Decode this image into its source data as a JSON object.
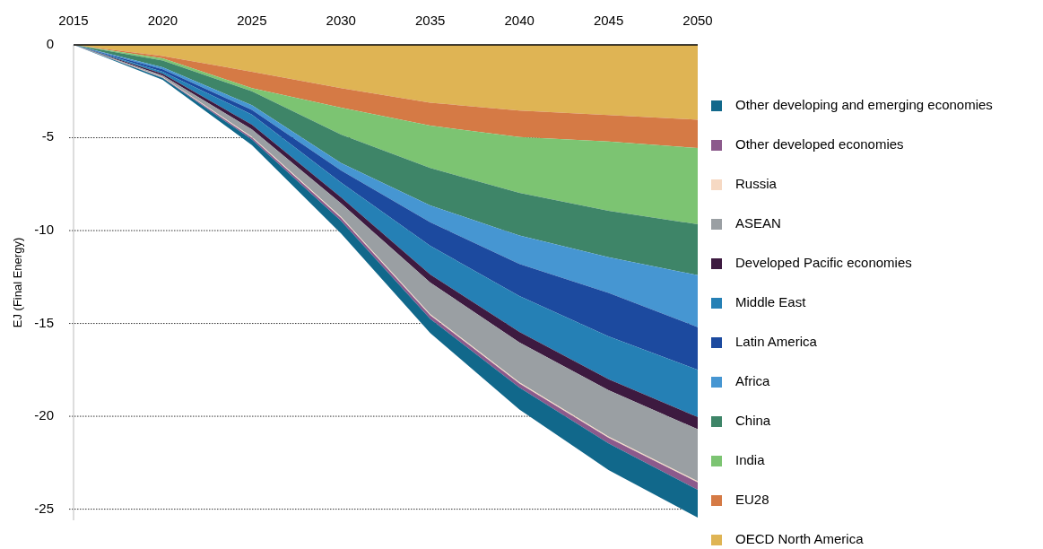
{
  "chart_data": {
    "type": "area",
    "stacked": true,
    "ylabel": "EJ (Final Energy)",
    "categories": [
      "2015",
      "2020",
      "2025",
      "2030",
      "2035",
      "2040",
      "2045",
      "2050"
    ],
    "ylim": [
      -25.6,
      0
    ],
    "yticks": [
      0,
      -5,
      -10,
      -15,
      -20,
      -25
    ],
    "grid": "y",
    "legend": "right",
    "series": [
      {
        "name": "OECD North America",
        "color": "#dfb454",
        "values": [
          0,
          -0.6,
          -1.45,
          -2.33,
          -3.11,
          -3.54,
          -3.78,
          -4.03
        ]
      },
      {
        "name": "EU28",
        "color": "#d57a45",
        "values": [
          0,
          -0.12,
          -0.88,
          -1.05,
          -1.24,
          -1.42,
          -1.42,
          -1.53
        ]
      },
      {
        "name": "India",
        "color": "#7cc472",
        "values": [
          0,
          -0.12,
          -0.17,
          -1.45,
          -2.28,
          -3.01,
          -3.74,
          -4.1
        ]
      },
      {
        "name": "China",
        "color": "#3e8568",
        "values": [
          0,
          -0.37,
          -0.75,
          -1.53,
          -2.02,
          -2.3,
          -2.49,
          -2.74
        ]
      },
      {
        "name": "Africa",
        "color": "#4696d2",
        "values": [
          0,
          -0.11,
          -0.25,
          -0.4,
          -0.9,
          -1.53,
          -1.93,
          -2.8
        ]
      },
      {
        "name": "Latin America",
        "color": "#1c4a9f",
        "values": [
          0,
          -0.13,
          -0.25,
          -0.65,
          -1.27,
          -1.73,
          -2.34,
          -2.3
        ]
      },
      {
        "name": "Middle East",
        "color": "#2580b5",
        "values": [
          0,
          -0.11,
          -0.55,
          -0.8,
          -1.55,
          -1.93,
          -2.3,
          -2.55
        ]
      },
      {
        "name": "Developed Pacific economies",
        "color": "#3d1a40",
        "values": [
          0,
          -0.1,
          -0.25,
          -0.33,
          -0.43,
          -0.56,
          -0.6,
          -0.65
        ]
      },
      {
        "name": "ASEAN",
        "color": "#9a9fa3",
        "values": [
          0,
          -0.08,
          -0.4,
          -0.72,
          -1.7,
          -2.15,
          -2.5,
          -2.8
        ]
      },
      {
        "name": "Russia",
        "color": "#f6d9c3",
        "values": [
          0,
          -0.02,
          -0.05,
          -0.06,
          -0.06,
          -0.06,
          -0.06,
          -0.06
        ]
      },
      {
        "name": "Other developed economies",
        "color": "#8c5a8c",
        "values": [
          0,
          -0.03,
          -0.1,
          -0.16,
          -0.2,
          -0.22,
          -0.3,
          -0.4
        ]
      },
      {
        "name": "Other developing and emerging economies",
        "color": "#11688b",
        "values": [
          0,
          -0.09,
          -0.3,
          -0.68,
          -0.76,
          -1.18,
          -1.43,
          -1.5
        ]
      }
    ]
  }
}
